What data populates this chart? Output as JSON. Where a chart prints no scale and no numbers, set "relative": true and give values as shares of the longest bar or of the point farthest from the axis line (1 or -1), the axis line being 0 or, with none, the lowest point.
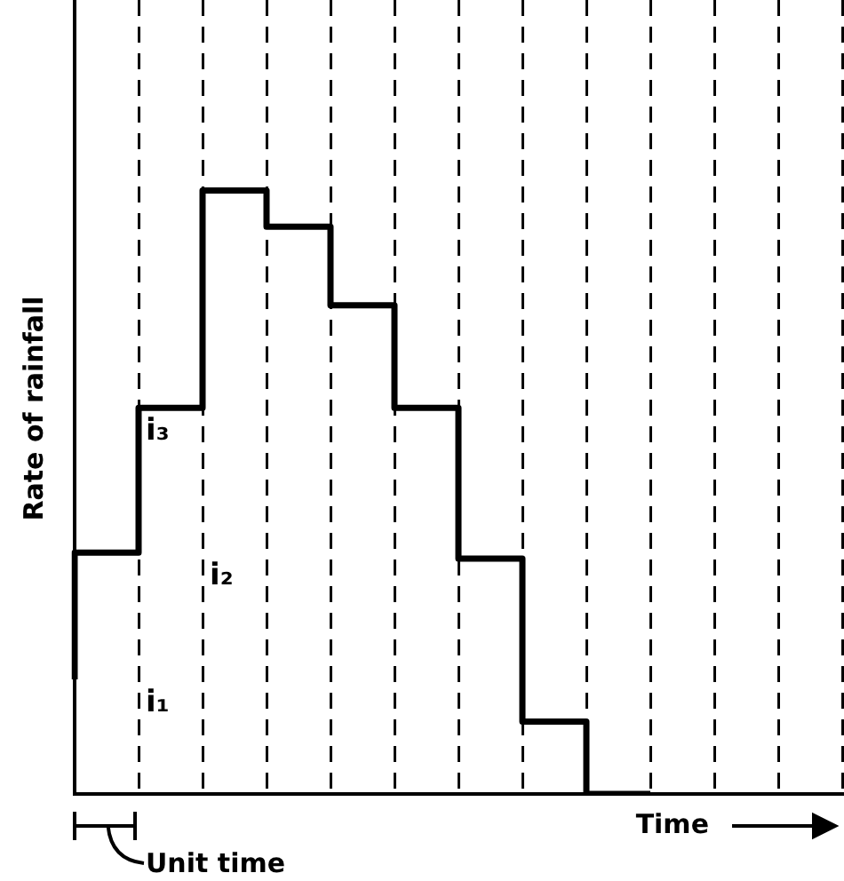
{
  "chart_data": {
    "type": "step",
    "relative": true,
    "xlabel": "Time",
    "ylabel": "Rate of rainfall",
    "categories": [
      null,
      null,
      null,
      null,
      null,
      null,
      null,
      null,
      null,
      null,
      null,
      null,
      null
    ],
    "series": [
      {
        "color": "#000000",
        "values": [
          0.19,
          0.4,
          0.64,
          1,
          0.94,
          0.81,
          0.64,
          0.39,
          0.12,
          0,
          null,
          null,
          null
        ]
      }
    ],
    "annotations": [
      "i₁",
      "i₂",
      "i₃",
      "Unit time"
    ],
    "grid": "x",
    "legend": false,
    "tick_labels": false,
    "marker": "none",
    "line_style": "solid"
  }
}
